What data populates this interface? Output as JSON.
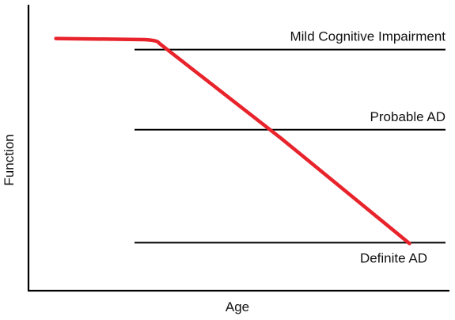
{
  "chart_data": {
    "type": "line",
    "xlabel": "Age",
    "ylabel": "Function",
    "thresholds": [
      {
        "label": "Mild Cognitive Impairment",
        "value": 0.843
      },
      {
        "label": "Probable AD",
        "value": 0.563
      },
      {
        "label": "Definite AD",
        "value": 0.168
      }
    ],
    "series": [
      {
        "color": "#e8232b",
        "points": [
          {
            "x": 0.065,
            "y": 0.882
          },
          {
            "x": 0.275,
            "y": 0.878
          },
          {
            "x": 0.31,
            "y": 0.866
          },
          {
            "x": 0.6,
            "y": 0.533
          },
          {
            "x": 0.905,
            "y": 0.165
          }
        ]
      }
    ],
    "xlim": [
      0,
      1
    ],
    "ylim": [
      0,
      1
    ],
    "grid": false,
    "axis_ticks": false
  }
}
